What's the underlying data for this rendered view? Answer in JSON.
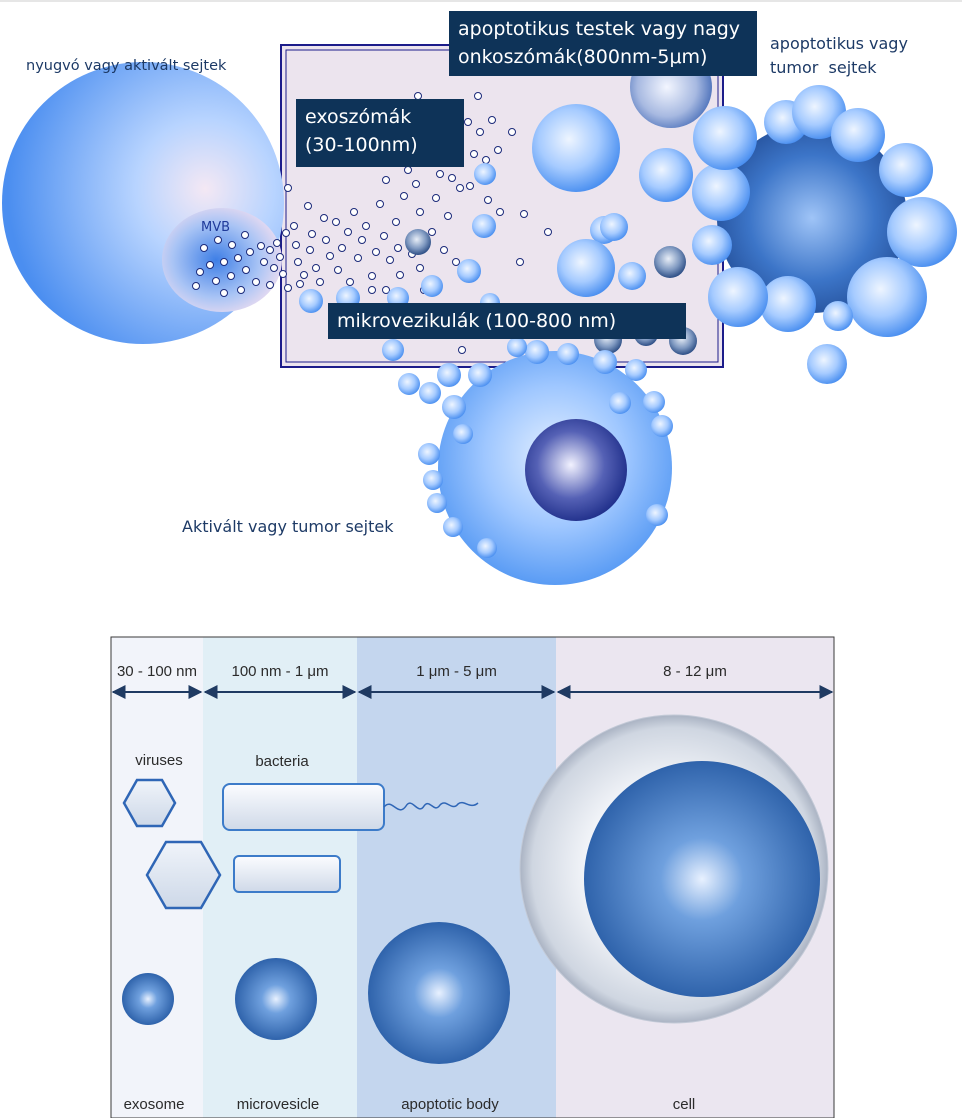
{
  "top": {
    "resting_cells": "nyugvó vagy aktivált sejtek",
    "mvb": "MVB",
    "exosomes_box": [
      "exoszómák",
      "(30-100nm)"
    ],
    "apoptotic_box": [
      "apoptotikus testek vagy nagy",
      "onkoszómák(800nm-5μm)"
    ],
    "microvesicles_box": "mikrovezikulák (100-800 nm)",
    "apoptotic_cells": [
      "apoptotikus vagy",
      "tumor  sejtek"
    ],
    "activated_cells": "Aktivált vagy tumor sejtek"
  },
  "bottom": {
    "ranges": [
      "30 - 100 nm",
      "100 nm - 1 μm",
      "1 μm - 5 μm",
      "8 - 12 μm"
    ],
    "viruses": "viruses",
    "bacteria": "bacteria",
    "labels": [
      "exosome",
      "microvesicle",
      "apoptotic body",
      "cell"
    ]
  },
  "colors": {
    "navy": "#0e3358",
    "vesicle_light": "#e9f2ff",
    "vesicle_dark": "#4a8ff0",
    "box_border": "#1c1c8a",
    "col1_bg": "#f2f4fa",
    "col2_bg": "#e1eff6",
    "col3_bg": "#c4d6ee",
    "col4_bg": "#ebe6f0"
  }
}
